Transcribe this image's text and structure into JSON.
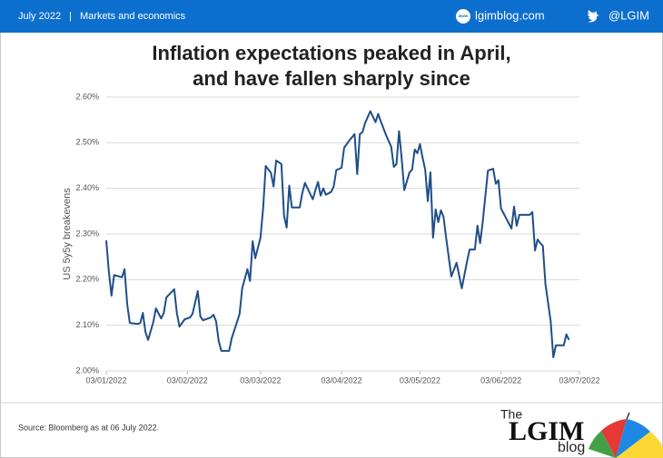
{
  "header": {
    "date": "July 2022",
    "separator": "|",
    "section": "Markets and economics",
    "site_icon": "www",
    "site": "lgimblog.com",
    "twitter": "@LGIM"
  },
  "chart_data": {
    "type": "line",
    "title": [
      "Inflation expectations peaked in April,",
      "and have fallen sharply since"
    ],
    "y_label": "US 5y5y breakevens",
    "color": "#1f4e89",
    "grid": true,
    "x": [
      "2022-01-03",
      "2022-01-04",
      "2022-01-05",
      "2022-01-06",
      "2022-01-08",
      "2022-01-09",
      "2022-01-10",
      "2022-01-11",
      "2022-01-12",
      "2022-01-15",
      "2022-01-16",
      "2022-01-17",
      "2022-01-18",
      "2022-01-19",
      "2022-01-21",
      "2022-01-22",
      "2022-01-24",
      "2022-01-25",
      "2022-01-26",
      "2022-01-29",
      "2022-01-30",
      "2022-01-31",
      "2022-02-02",
      "2022-02-04",
      "2022-02-05",
      "2022-02-07",
      "2022-02-08",
      "2022-02-09",
      "2022-02-12",
      "2022-02-13",
      "2022-02-14",
      "2022-02-15",
      "2022-02-16",
      "2022-02-19",
      "2022-02-20",
      "2022-02-22",
      "2022-02-23",
      "2022-02-24",
      "2022-02-26",
      "2022-02-27",
      "2022-02-28",
      "2022-03-01",
      "2022-03-03",
      "2022-03-04",
      "2022-03-05",
      "2022-03-07",
      "2022-03-08",
      "2022-03-09",
      "2022-03-11",
      "2022-03-12",
      "2022-03-13",
      "2022-03-14",
      "2022-03-15",
      "2022-03-18",
      "2022-03-19",
      "2022-03-20",
      "2022-03-21",
      "2022-03-23",
      "2022-03-24",
      "2022-03-25",
      "2022-03-26",
      "2022-03-27",
      "2022-03-28",
      "2022-03-30",
      "2022-03-31",
      "2022-04-01",
      "2022-04-03",
      "2022-04-04",
      "2022-04-06",
      "2022-04-08",
      "2022-04-09",
      "2022-04-10",
      "2022-04-11",
      "2022-04-12",
      "2022-04-14",
      "2022-04-16",
      "2022-04-17",
      "2022-04-18",
      "2022-04-20",
      "2022-04-22",
      "2022-04-23",
      "2022-04-24",
      "2022-04-25",
      "2022-04-26",
      "2022-04-27",
      "2022-04-29",
      "2022-04-30",
      "2022-05-01",
      "2022-05-02",
      "2022-05-03",
      "2022-05-04",
      "2022-05-05",
      "2022-05-06",
      "2022-05-07",
      "2022-05-08",
      "2022-05-09",
      "2022-05-10",
      "2022-05-11",
      "2022-05-12",
      "2022-05-13",
      "2022-05-15",
      "2022-05-17",
      "2022-05-19",
      "2022-05-21",
      "2022-05-22",
      "2022-05-24",
      "2022-05-25",
      "2022-05-26",
      "2022-05-27",
      "2022-05-29",
      "2022-05-31",
      "2022-06-01",
      "2022-06-02",
      "2022-06-03",
      "2022-06-05",
      "2022-06-07",
      "2022-06-08",
      "2022-06-09",
      "2022-06-10",
      "2022-06-14",
      "2022-06-15",
      "2022-06-16",
      "2022-06-17",
      "2022-06-18",
      "2022-06-19",
      "2022-06-20",
      "2022-06-22",
      "2022-06-23",
      "2022-06-24",
      "2022-06-27",
      "2022-06-28",
      "2022-06-29"
    ],
    "values": [
      2.286,
      2.217,
      2.165,
      2.21,
      2.207,
      2.205,
      2.223,
      2.147,
      2.105,
      2.103,
      2.105,
      2.127,
      2.085,
      2.068,
      2.107,
      2.137,
      2.115,
      2.127,
      2.161,
      2.179,
      2.127,
      2.097,
      2.113,
      2.117,
      2.125,
      2.175,
      2.119,
      2.111,
      2.117,
      2.123,
      2.109,
      2.066,
      2.044,
      2.044,
      2.072,
      2.107,
      2.125,
      2.181,
      2.223,
      2.197,
      2.284,
      2.247,
      2.292,
      2.356,
      2.449,
      2.434,
      2.404,
      2.461,
      2.453,
      2.34,
      2.314,
      2.406,
      2.358,
      2.358,
      2.39,
      2.412,
      2.4,
      2.376,
      2.396,
      2.414,
      2.384,
      2.4,
      2.386,
      2.392,
      2.404,
      2.44,
      2.445,
      2.489,
      2.505,
      2.519,
      2.431,
      2.519,
      2.523,
      2.543,
      2.569,
      2.545,
      2.563,
      2.547,
      2.517,
      2.491,
      2.447,
      2.453,
      2.525,
      2.465,
      2.396,
      2.435,
      2.441,
      2.485,
      2.477,
      2.497,
      2.467,
      2.441,
      2.372,
      2.435,
      2.292,
      2.354,
      2.326,
      2.352,
      2.338,
      2.292,
      2.207,
      2.237,
      2.181,
      2.24,
      2.266,
      2.266,
      2.318,
      2.28,
      2.326,
      2.439,
      2.443,
      2.41,
      2.418,
      2.356,
      2.334,
      2.312,
      2.36,
      2.318,
      2.342,
      2.342,
      2.348,
      2.264,
      2.288,
      2.28,
      2.274,
      2.19,
      2.109,
      2.03,
      2.056,
      2.056,
      2.08,
      2.068
    ],
    "xlim": [
      "2022-01-03",
      "2022-07-03"
    ],
    "xticks": [
      {
        "value": "2022-01-03",
        "label": "03/01/2022"
      },
      {
        "value": "2022-02-03",
        "label": "03/02/2022"
      },
      {
        "value": "2022-03-03",
        "label": "03/03/2022"
      },
      {
        "value": "2022-04-03",
        "label": "03/04/2022"
      },
      {
        "value": "2022-05-03",
        "label": "03/05/2022"
      },
      {
        "value": "2022-06-03",
        "label": "03/06/2022"
      },
      {
        "value": "2022-07-03",
        "label": "03/07/2022"
      }
    ],
    "ylim": [
      2.0,
      2.6
    ],
    "yticks": [
      {
        "value": 2.0,
        "label": "2.00%"
      },
      {
        "value": 2.1,
        "label": "2.10%"
      },
      {
        "value": 2.2,
        "label": "2.20%"
      },
      {
        "value": 2.3,
        "label": "2.30%"
      },
      {
        "value": 2.4,
        "label": "2.40%"
      },
      {
        "value": 2.5,
        "label": "2.50%"
      },
      {
        "value": 2.6,
        "label": "2.60%"
      }
    ]
  },
  "footer": {
    "source": "Source: Bloomberg as at 06 July 2022.",
    "logo_the": "The",
    "logo_name": "LGIM",
    "logo_blog": "blog"
  }
}
